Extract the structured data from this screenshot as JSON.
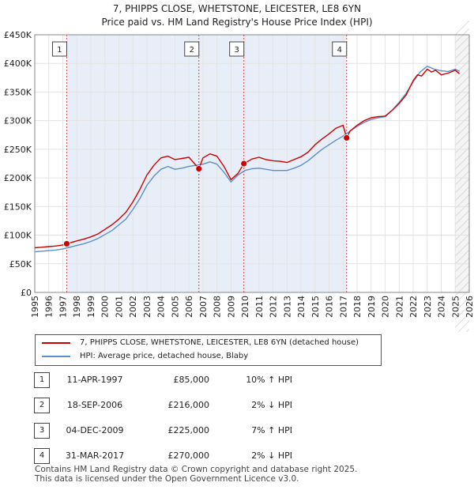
{
  "title_line1": "7, PHIPPS CLOSE, WHETSTONE, LEICESTER, LE8 6YN",
  "title_line2": "Price paid vs. HM Land Registry's House Price Index (HPI)",
  "colors": {
    "property": "#cc0000",
    "hpi": "#5b8fc9",
    "event_line": "#dd4444",
    "band": "#e8eef8"
  },
  "chart_data": {
    "type": "line",
    "xlim": [
      1995,
      2026
    ],
    "ylim": [
      0,
      450000
    ],
    "y_ticks": [
      0,
      50000,
      100000,
      150000,
      200000,
      250000,
      300000,
      350000,
      400000,
      450000
    ],
    "y_tick_labels": [
      "£0",
      "£50K",
      "£100K",
      "£150K",
      "£200K",
      "£250K",
      "£300K",
      "£350K",
      "£400K",
      "£450K"
    ],
    "x_ticks": [
      1995,
      1996,
      1997,
      1998,
      1999,
      2000,
      2001,
      2002,
      2003,
      2004,
      2005,
      2006,
      2007,
      2008,
      2009,
      2010,
      2011,
      2012,
      2013,
      2014,
      2015,
      2016,
      2017,
      2018,
      2019,
      2020,
      2021,
      2022,
      2023,
      2024,
      2025,
      2026
    ],
    "x_tick_labels": [
      "1995",
      "1996",
      "1997",
      "1998",
      "1999",
      "2000",
      "2001",
      "2002",
      "2003",
      "2004",
      "2005",
      "2006",
      "2007",
      "2008",
      "2009",
      "2010",
      "2011",
      "2012",
      "2013",
      "2014",
      "2015",
      "2016",
      "2017",
      "2018",
      "2019",
      "2020",
      "2021",
      "2022",
      "2023",
      "2024",
      "2025",
      "2026"
    ],
    "series": [
      {
        "name": "7, PHIPPS CLOSE, WHETSTONE, LEICESTER, LE8 6YN (detached house)",
        "x": [
          1995,
          1995.5,
          1996,
          1996.5,
          1997,
          1997.28,
          1998,
          1998.5,
          1999,
          1999.5,
          2000,
          2000.5,
          2001,
          2001.5,
          2002,
          2002.5,
          2003,
          2003.5,
          2004,
          2004.5,
          2005,
          2005.5,
          2006,
          2006.71,
          2007,
          2007.5,
          2008,
          2008.5,
          2009,
          2009.5,
          2009.92,
          2010.5,
          2011,
          2011.5,
          2012,
          2012.5,
          2013,
          2013.5,
          2014,
          2014.5,
          2015,
          2015.5,
          2016,
          2016.5,
          2017,
          2017.25,
          2017.5,
          2018,
          2018.5,
          2019,
          2019.5,
          2020,
          2020.5,
          2021,
          2021.5,
          2022,
          2022.3,
          2022.6,
          2023,
          2023.3,
          2023.6,
          2024,
          2024.5,
          2025,
          2025.3
        ],
        "values": [
          78000,
          79000,
          80000,
          81000,
          83000,
          85000,
          90000,
          93000,
          97000,
          102000,
          110000,
          118000,
          128000,
          140000,
          158000,
          180000,
          205000,
          222000,
          235000,
          238000,
          232000,
          234000,
          236000,
          216000,
          235000,
          242000,
          238000,
          220000,
          197000,
          208000,
          225000,
          233000,
          236000,
          232000,
          230000,
          229000,
          227000,
          232000,
          237000,
          245000,
          258000,
          268000,
          277000,
          287000,
          292000,
          270000,
          282000,
          292000,
          300000,
          305000,
          307000,
          308000,
          318000,
          330000,
          345000,
          370000,
          380000,
          378000,
          390000,
          385000,
          388000,
          380000,
          383000,
          388000,
          382000
        ]
      },
      {
        "name": "HPI: Average price, detached house, Blaby",
        "x": [
          1995,
          1995.5,
          1996,
          1996.5,
          1997,
          1997.5,
          1998,
          1998.5,
          1999,
          1999.5,
          2000,
          2000.5,
          2001,
          2001.5,
          2002,
          2002.5,
          2003,
          2003.5,
          2004,
          2004.5,
          2005,
          2005.5,
          2006,
          2006.5,
          2007,
          2007.5,
          2008,
          2008.5,
          2009,
          2009.5,
          2010,
          2010.5,
          2011,
          2011.5,
          2012,
          2012.5,
          2013,
          2013.5,
          2014,
          2014.5,
          2015,
          2015.5,
          2016,
          2016.5,
          2017,
          2017.5,
          2018,
          2018.5,
          2019,
          2019.5,
          2020,
          2020.5,
          2021,
          2021.5,
          2022,
          2022.5,
          2023,
          2023.5,
          2024,
          2024.5,
          2025,
          2025.3
        ],
        "values": [
          71000,
          72000,
          73000,
          74000,
          76000,
          79000,
          82000,
          85000,
          89000,
          94000,
          101000,
          108000,
          118000,
          128000,
          145000,
          164000,
          187000,
          203000,
          215000,
          220000,
          215000,
          217000,
          220000,
          222000,
          224000,
          228000,
          224000,
          210000,
          193000,
          205000,
          213000,
          216000,
          217000,
          215000,
          213000,
          213000,
          213000,
          217000,
          222000,
          230000,
          240000,
          250000,
          258000,
          266000,
          273000,
          282000,
          290000,
          297000,
          302000,
          305000,
          307000,
          318000,
          332000,
          348000,
          368000,
          385000,
          395000,
          390000,
          387000,
          386000,
          390000,
          386000
        ]
      }
    ],
    "events": [
      {
        "label": "1",
        "x": 1997.28,
        "price": 85000
      },
      {
        "label": "2",
        "x": 2006.71,
        "price": 216000
      },
      {
        "label": "3",
        "x": 2009.92,
        "price": 225000
      },
      {
        "label": "4",
        "x": 2017.25,
        "price": 270000
      }
    ],
    "forecast_start": 2025.0
  },
  "legend": {
    "property_label": "7, PHIPPS CLOSE, WHETSTONE, LEICESTER, LE8 6YN (detached house)",
    "hpi_label": "HPI: Average price, detached house, Blaby"
  },
  "transactions": [
    {
      "num": "1",
      "date": "11-APR-1997",
      "price": "£85,000",
      "hpi": "10% ↑ HPI"
    },
    {
      "num": "2",
      "date": "18-SEP-2006",
      "price": "£216,000",
      "hpi": "2% ↓ HPI"
    },
    {
      "num": "3",
      "date": "04-DEC-2009",
      "price": "£225,000",
      "hpi": "7% ↑ HPI"
    },
    {
      "num": "4",
      "date": "31-MAR-2017",
      "price": "£270,000",
      "hpi": "2% ↓ HPI"
    }
  ],
  "footer_line1": "Contains HM Land Registry data © Crown copyright and database right 2025.",
  "footer_line2": "This data is licensed under the Open Government Licence v3.0."
}
